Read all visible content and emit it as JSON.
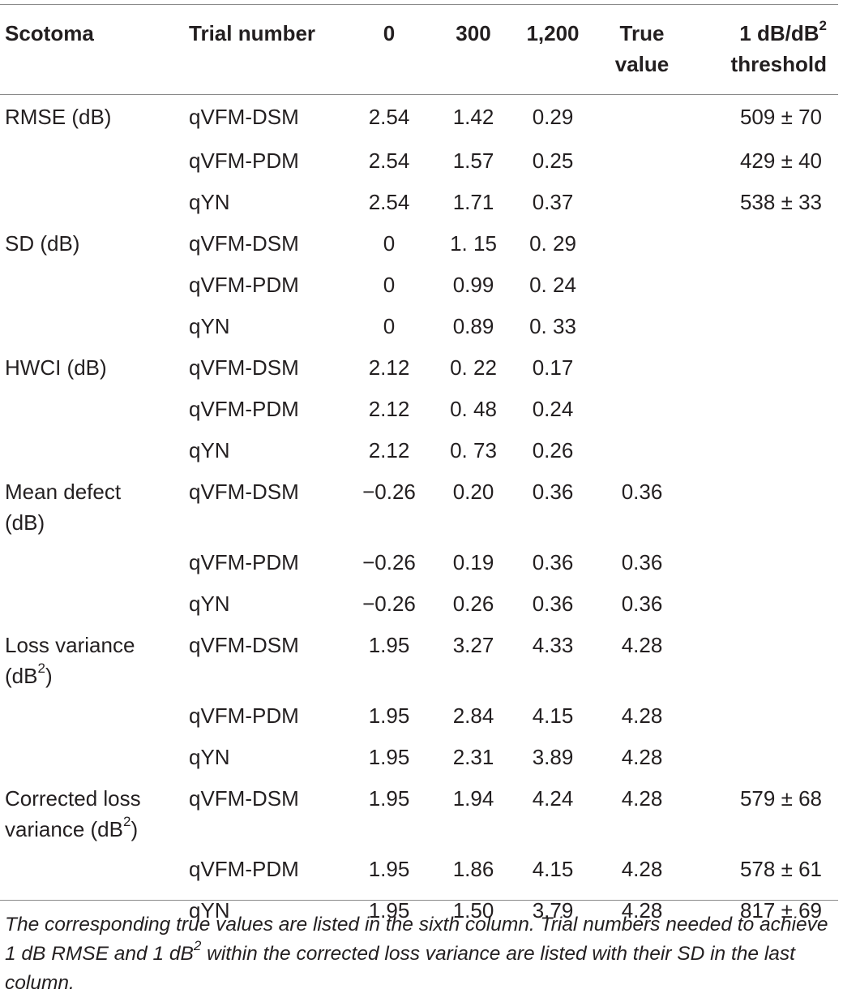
{
  "header": {
    "scotoma": "Scotoma",
    "trial_number": "Trial number",
    "t0": "0",
    "t300": "300",
    "t1200": "1,200",
    "true_value_line1": "True",
    "true_value_line2": "value",
    "threshold_line1": "1 dB/dB",
    "threshold_sup": "2",
    "threshold_line2": "threshold"
  },
  "rows": [
    {
      "label": "RMSE (dB)",
      "method": "qVFM-DSM",
      "v0": "2.54",
      "v300": "1.42",
      "v1200": "0.29",
      "true": "",
      "thr": "509 ± 70"
    },
    {
      "label": "",
      "method": "qVFM-PDM",
      "v0": "2.54",
      "v300": "1.57",
      "v1200": "0.25",
      "true": "",
      "thr": "429 ± 40"
    },
    {
      "label": "",
      "method": "qYN",
      "v0": "2.54",
      "v300": "1.71",
      "v1200": "0.37",
      "true": "",
      "thr": "538 ± 33"
    },
    {
      "label": "SD (dB)",
      "method": "qVFM-DSM",
      "v0": "0",
      "v300": "1. 15",
      "v1200": "0. 29",
      "true": "",
      "thr": ""
    },
    {
      "label": "",
      "method": "qVFM-PDM",
      "v0": "0",
      "v300": "0.99",
      "v1200": "0. 24",
      "true": "",
      "thr": ""
    },
    {
      "label": "",
      "method": "qYN",
      "v0": "0",
      "v300": "0.89",
      "v1200": "0. 33",
      "true": "",
      "thr": ""
    },
    {
      "label": "HWCI (dB)",
      "method": "qVFM-DSM",
      "v0": "2.12",
      "v300": "0. 22",
      "v1200": "0.17",
      "true": "",
      "thr": ""
    },
    {
      "label": "",
      "method": "qVFM-PDM",
      "v0": "2.12",
      "v300": "0. 48",
      "v1200": "0.24",
      "true": "",
      "thr": ""
    },
    {
      "label": "",
      "method": "qYN",
      "v0": "2.12",
      "v300": "0. 73",
      "v1200": "0.26",
      "true": "",
      "thr": ""
    },
    {
      "label_line1": "Mean defect",
      "label_line2": "(dB)",
      "method": "qVFM-DSM",
      "v0": "−0.26",
      "v300": "0.20",
      "v1200": "0.36",
      "true": "0.36",
      "thr": ""
    },
    {
      "label": "",
      "method": "qVFM-PDM",
      "v0": "−0.26",
      "v300": "0.19",
      "v1200": "0.36",
      "true": "0.36",
      "thr": ""
    },
    {
      "label": "",
      "method": "qYN",
      "v0": "−0.26",
      "v300": "0.26",
      "v1200": "0.36",
      "true": "0.36",
      "thr": ""
    },
    {
      "label_line1": "Loss variance",
      "label_line2": "(dB",
      "label_sup": "2",
      "label_close": ")",
      "method": "qVFM-DSM",
      "v0": "1.95",
      "v300": "3.27",
      "v1200": "4.33",
      "true": "4.28",
      "thr": ""
    },
    {
      "label": "",
      "method": "qVFM-PDM",
      "v0": "1.95",
      "v300": "2.84",
      "v1200": "4.15",
      "true": "4.28",
      "thr": ""
    },
    {
      "label": "",
      "method": "qYN",
      "v0": "1.95",
      "v300": "2.31",
      "v1200": "3.89",
      "true": "4.28",
      "thr": ""
    },
    {
      "label_line1": "Corrected loss",
      "label_line2": "variance (dB",
      "label_sup": "2",
      "label_close": ")",
      "method": "qVFM-DSM",
      "v0": "1.95",
      "v300": "1.94",
      "v1200": "4.24",
      "true": "4.28",
      "thr": "579 ± 68"
    },
    {
      "label": "",
      "method": "qVFM-PDM",
      "v0": "1.95",
      "v300": "1.86",
      "v1200": "4.15",
      "true": "4.28",
      "thr": "578 ± 61"
    },
    {
      "label": "",
      "method": "qYN",
      "v0": "1.95",
      "v300": "1.50",
      "v1200": "3.79",
      "true": "4.28",
      "thr": "817 ± 69"
    }
  ],
  "caption": {
    "part1": "The corresponding true values are listed in the sixth column. Trial numbers needed to achieve 1 dB RMSE and 1 dB",
    "sup": "2",
    "part2": " within the corrected loss variance are listed with their SD in the last column."
  }
}
